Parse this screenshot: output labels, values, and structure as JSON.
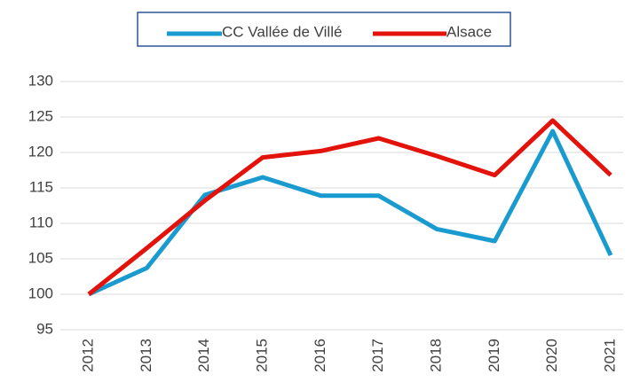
{
  "chart_data": {
    "type": "line",
    "categories": [
      "2012",
      "2013",
      "2014",
      "2015",
      "2016",
      "2017",
      "2018",
      "2019",
      "2020",
      "2021"
    ],
    "series": [
      {
        "name": "CC Vallée de Villé",
        "color": "#1a9bd0",
        "values": [
          100,
          103.7,
          114,
          116.5,
          113.9,
          113.9,
          109.2,
          107.5,
          123,
          105.5
        ]
      },
      {
        "name": "Alsace",
        "color": "#e3120b",
        "values": [
          100,
          106.5,
          113.2,
          119.3,
          120.2,
          122,
          119.5,
          116.8,
          124.5,
          116.8
        ]
      }
    ],
    "ylim": [
      95,
      130
    ],
    "yticks": [
      95,
      100,
      105,
      110,
      115,
      120,
      125,
      130
    ],
    "grid": true,
    "legend": "top"
  }
}
